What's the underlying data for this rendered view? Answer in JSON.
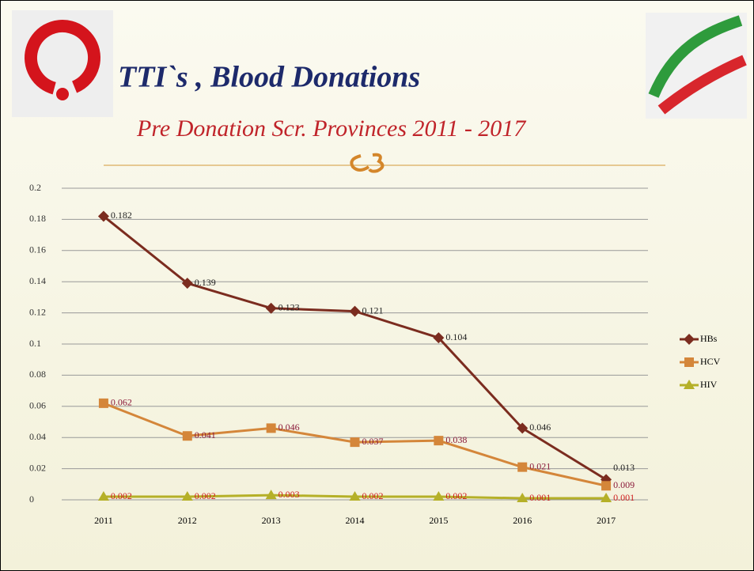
{
  "chart_data": {
    "type": "line",
    "title": "TTI`s , Blood Donations",
    "subtitle": "Pre Donation Scr. Provinces  2011 - 2017",
    "categories": [
      "2011",
      "2012",
      "2013",
      "2014",
      "2015",
      "2016",
      "2017"
    ],
    "series": [
      {
        "name": "HBs",
        "color": "#7b2c1f",
        "marker": "diamond",
        "label_color": "#222222",
        "values": [
          0.182,
          0.139,
          0.123,
          0.121,
          0.104,
          0.046,
          0.013
        ]
      },
      {
        "name": "HCV",
        "color": "#d4863a",
        "marker": "square",
        "label_color": "#8b1a3a",
        "values": [
          0.062,
          0.041,
          0.046,
          0.037,
          0.038,
          0.021,
          0.009
        ]
      },
      {
        "name": "HIV",
        "color": "#b5b028",
        "marker": "triangle",
        "label_color": "#d02020",
        "values": [
          0.002,
          0.002,
          0.003,
          0.002,
          0.002,
          0.001,
          0.001
        ]
      }
    ],
    "ylim": [
      0,
      0.2
    ],
    "yticks": [
      0,
      0.02,
      0.04,
      0.06,
      0.08,
      0.1,
      0.12,
      0.14,
      0.16,
      0.18,
      0.2
    ],
    "grid": true,
    "legend": "right"
  }
}
